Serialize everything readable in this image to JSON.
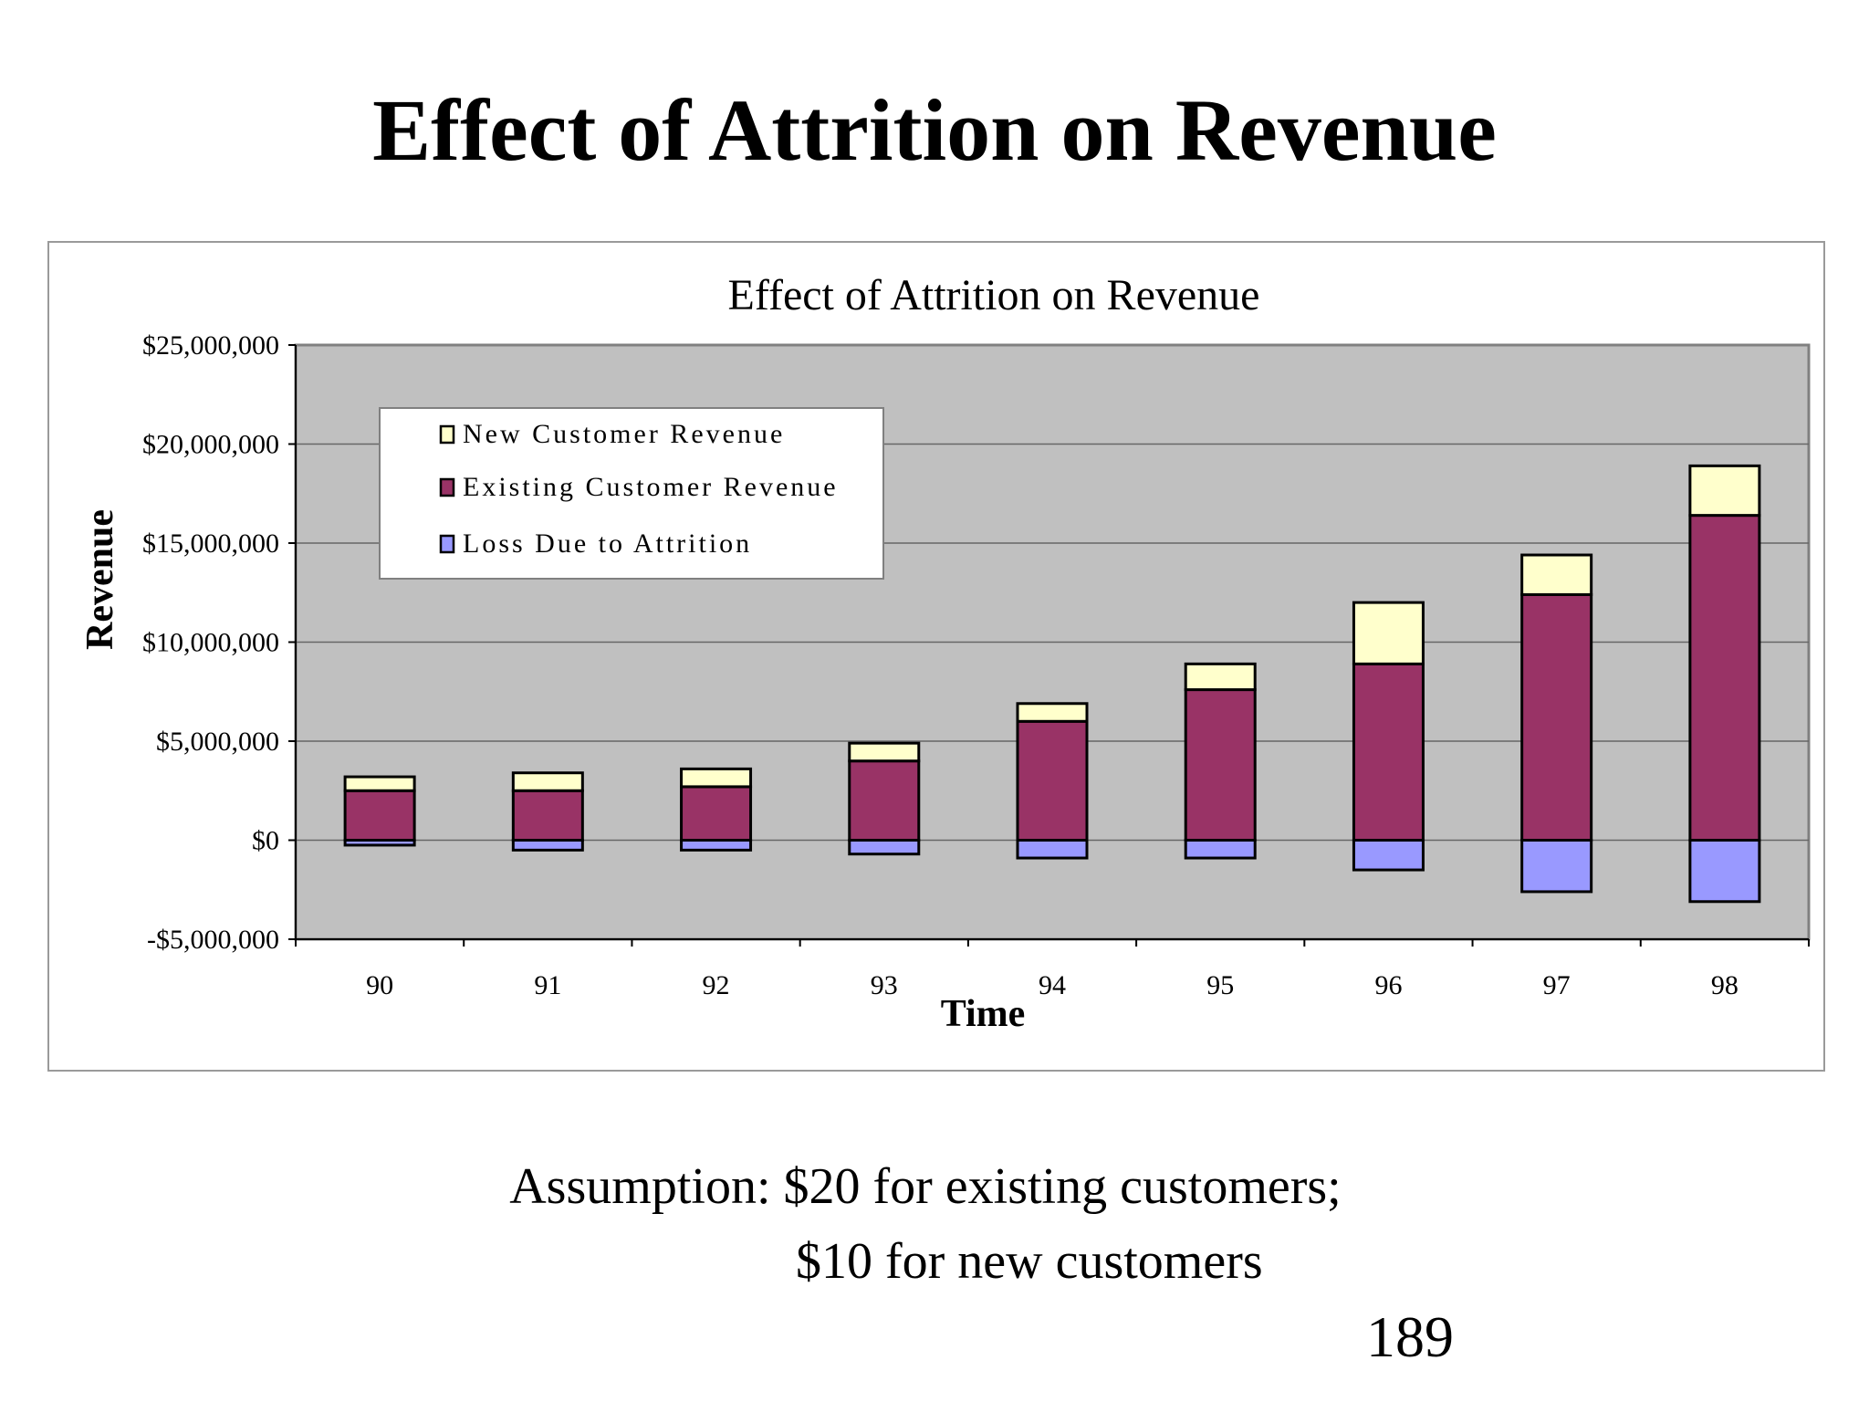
{
  "slide": {
    "title": "Effect of Attrition on Revenue",
    "caption_line1": "Assumption: $20 for existing customers;",
    "caption_line2": "$10 for new customers",
    "page_number": "189"
  },
  "chart_data": {
    "type": "bar",
    "stacked": true,
    "title": "Effect of Attrition on Revenue",
    "xlabel": "Time",
    "ylabel": "Revenue",
    "ylim": [
      -5000000,
      25000000
    ],
    "yticks": [
      25000000,
      20000000,
      15000000,
      10000000,
      5000000,
      0,
      -5000000
    ],
    "ytick_labels": [
      "$25,000,000",
      "$20,000,000",
      "$15,000,000",
      "$10,000,000",
      "$5,000,000",
      "$0",
      "-$5,000,000"
    ],
    "categories": [
      "90",
      "91",
      "92",
      "93",
      "94",
      "95",
      "96",
      "97",
      "98"
    ],
    "grid": true,
    "legend_position": "top-left",
    "series": [
      {
        "name": "New Customer Revenue",
        "color": "#ffffcc",
        "values": [
          700000,
          900000,
          900000,
          900000,
          900000,
          1300000,
          3100000,
          2000000,
          2500000
        ]
      },
      {
        "name": "Existing Customer Revenue",
        "color": "#993366",
        "values": [
          2500000,
          2500000,
          2700000,
          4000000,
          6000000,
          7600000,
          8900000,
          12400000,
          16400000
        ]
      },
      {
        "name": "Loss Due to Attrition",
        "color": "#9999ff",
        "values": [
          -250000,
          -500000,
          -500000,
          -700000,
          -900000,
          -900000,
          -1500000,
          -2600000,
          -3100000
        ]
      }
    ],
    "background_color": "#c0c0c0"
  }
}
